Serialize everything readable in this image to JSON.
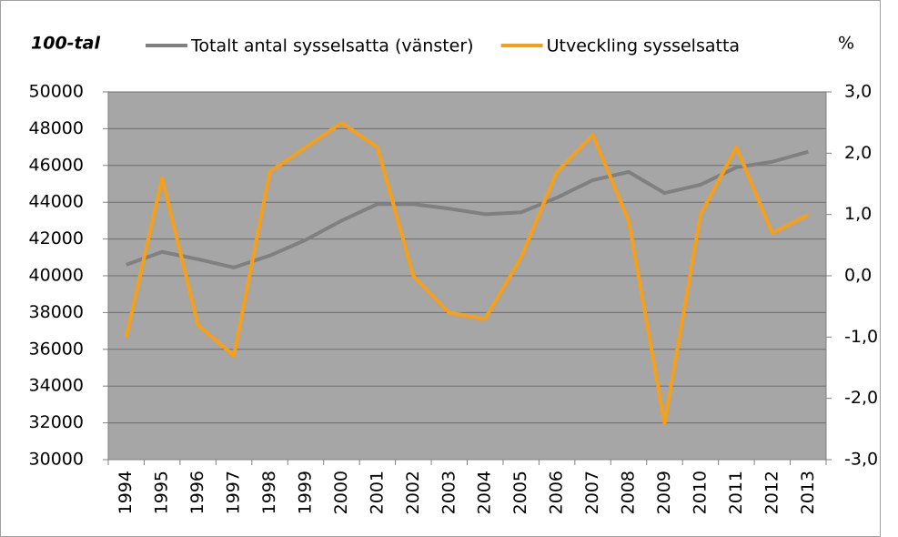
{
  "chart_data": {
    "type": "line",
    "y_axis_label": "100-tal",
    "y2_axis_label": "%",
    "categories": [
      "1994",
      "1995",
      "1996",
      "1997",
      "1998",
      "1999",
      "2000",
      "2001",
      "2002",
      "2003",
      "2004",
      "2005",
      "2006",
      "2007",
      "2008",
      "2009",
      "2010",
      "2011",
      "2012",
      "2013"
    ],
    "series": [
      {
        "name": "Totalt antal sysselsatta (vänster)",
        "color": "#808080",
        "values": [
          40600,
          41300,
          40900,
          40450,
          41100,
          41950,
          43000,
          43900,
          43900,
          43650,
          43350,
          43450,
          44250,
          45200,
          45650,
          44500,
          44950,
          45900,
          46200,
          46750
        ]
      },
      {
        "name": "Utveckling sysselsatta",
        "color": "#f5a01a",
        "axis": "y2",
        "values": [
          -1.0,
          1.6,
          -0.8,
          -1.3,
          1.7,
          2.1,
          2.5,
          2.1,
          0.0,
          -0.6,
          -0.7,
          0.3,
          1.7,
          2.3,
          0.9,
          -2.4,
          1.0,
          2.1,
          0.7,
          1.0
        ]
      }
    ],
    "ylim": [
      30000,
      50000
    ],
    "yticks": [
      30000,
      32000,
      34000,
      36000,
      38000,
      40000,
      42000,
      44000,
      46000,
      48000,
      50000
    ],
    "y2lim": [
      -3,
      3
    ],
    "y2ticks": [
      {
        "value": -3,
        "label": "-3,0"
      },
      {
        "value": -2,
        "label": "-2,0"
      },
      {
        "value": -1,
        "label": "-1,0"
      },
      {
        "value": 0,
        "label": "0,0"
      },
      {
        "value": 1,
        "label": "1,0"
      },
      {
        "value": 2,
        "label": "2,0"
      },
      {
        "value": 3,
        "label": "3,0"
      }
    ],
    "grid": true
  }
}
